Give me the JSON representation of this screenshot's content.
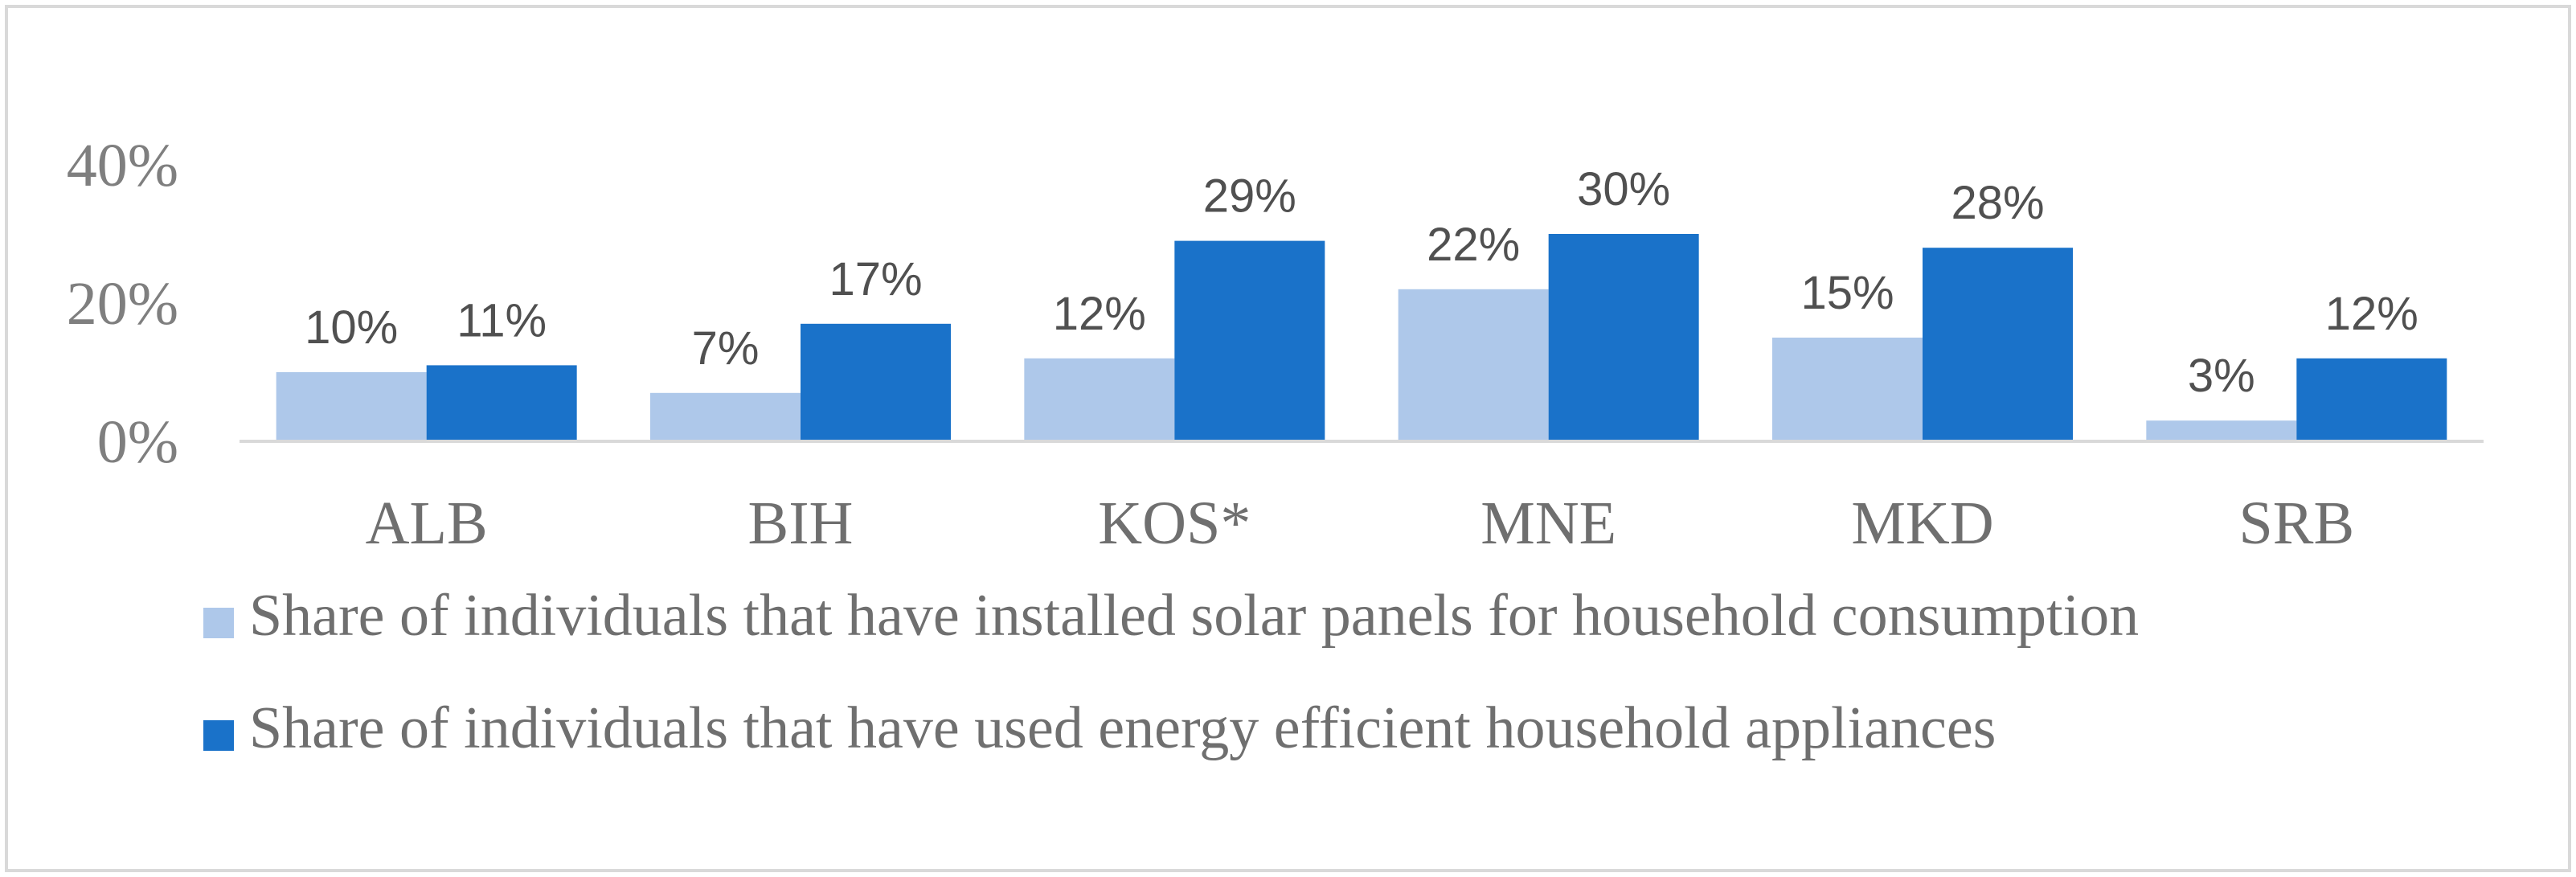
{
  "chart_data": {
    "type": "bar",
    "title": "",
    "xlabel": "",
    "ylabel": "",
    "categories": [
      "ALB",
      "BIH",
      "KOS*",
      "MNE",
      "MKD",
      "SRB"
    ],
    "series": [
      {
        "name": "Share of individuals that have installed solar panels for household consumption",
        "color": "#aec8ea",
        "values": [
          10,
          7,
          12,
          22,
          15,
          3
        ],
        "labels": [
          "10%",
          "7%",
          "12%",
          "22%",
          "15%",
          "3%"
        ]
      },
      {
        "name": "Share of individuals that have used energy efficient household appliances",
        "color": "#1a72c9",
        "values": [
          11,
          17,
          29,
          30,
          28,
          12
        ],
        "labels": [
          "11%",
          "17%",
          "29%",
          "30%",
          "28%",
          "12%"
        ]
      }
    ],
    "yticks": [
      {
        "value": 0,
        "label": "0%"
      },
      {
        "value": 20,
        "label": "20%"
      },
      {
        "value": 40,
        "label": "40%"
      }
    ],
    "ylim": [
      0,
      40
    ],
    "grid": false,
    "legend_position": "bottom"
  },
  "colors": {
    "frame": "#d9d9d9",
    "axis": "#d9d9d9"
  }
}
